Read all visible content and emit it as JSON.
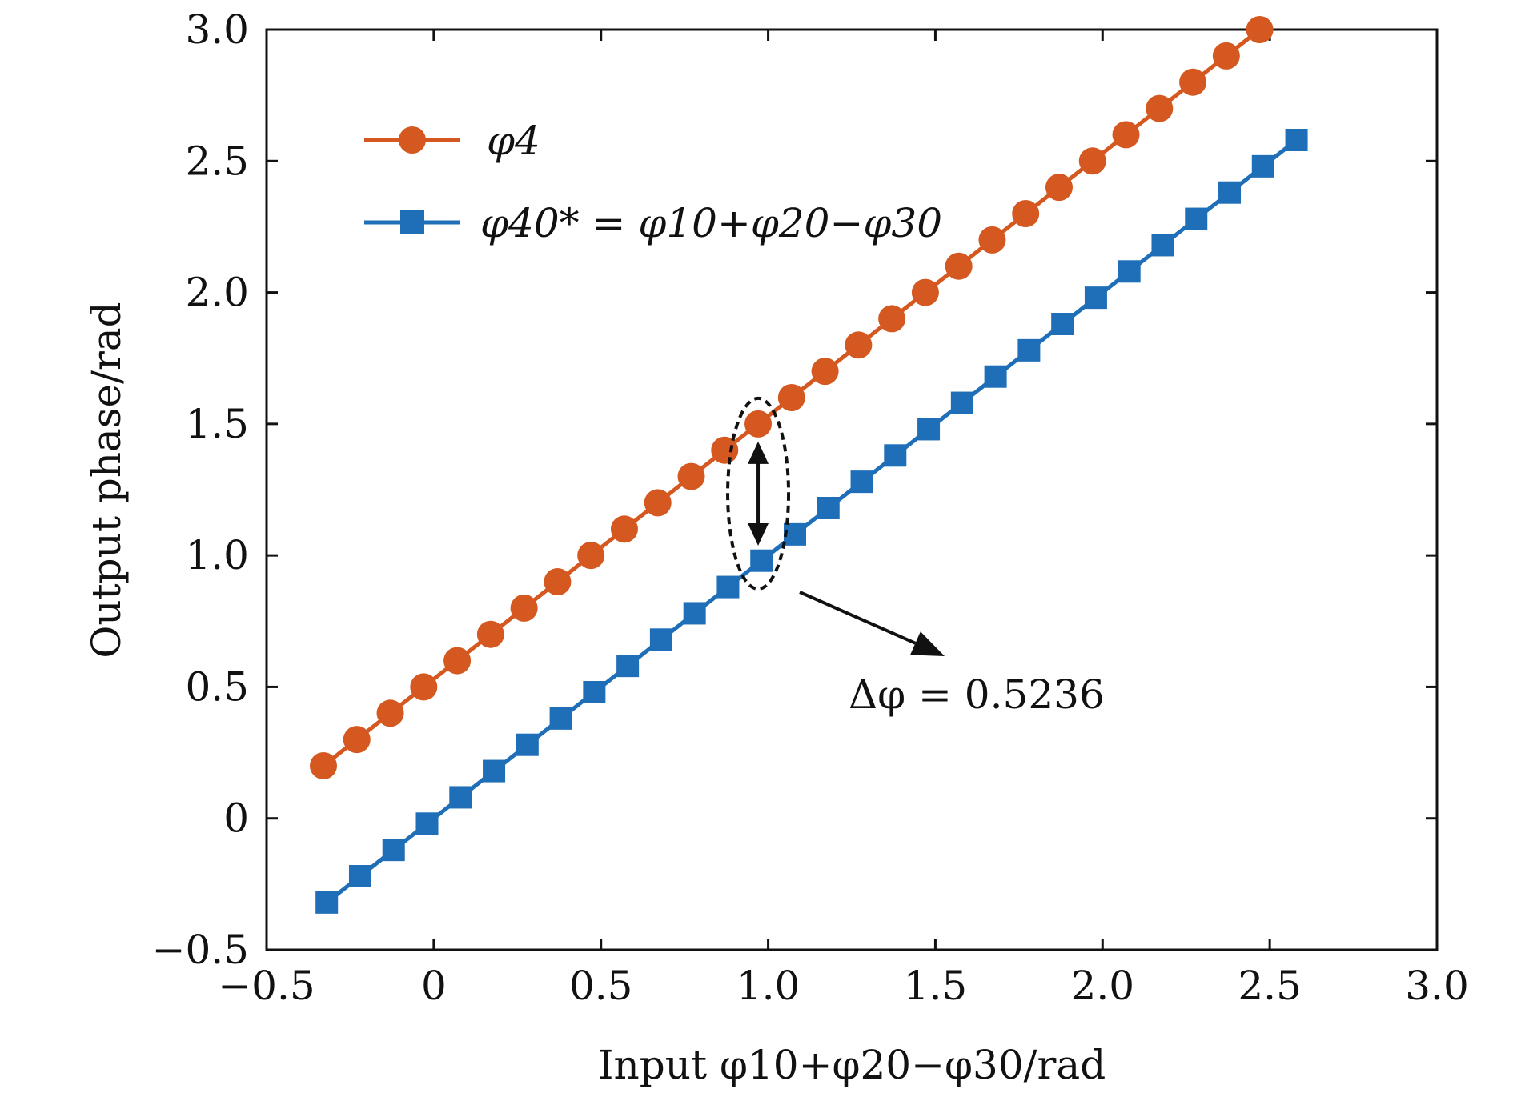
{
  "colors": {
    "series_orange": "#D4581F",
    "series_blue": "#1F6FB8",
    "axis": "#111111"
  },
  "chart_data": {
    "type": "line",
    "xlabel": "Input φ10+φ20−φ30/rad",
    "ylabel": "Output phase/rad",
    "xlim": [
      -0.5,
      3.0
    ],
    "ylim": [
      -0.5,
      3.0
    ],
    "x_ticks": [
      -0.5,
      0,
      0.5,
      1.0,
      1.5,
      2.0,
      2.5,
      3.0
    ],
    "x_tick_labels": [
      "−0.5",
      "0",
      "0.5",
      "1.0",
      "1.5",
      "2.0",
      "2.5",
      "3.0"
    ],
    "y_ticks": [
      -0.5,
      0,
      0.5,
      1.0,
      1.5,
      2.0,
      2.5,
      3.0
    ],
    "y_tick_labels": [
      "−0.5",
      "0",
      "0.5",
      "1.0",
      "1.5",
      "2.0",
      "2.5",
      "3.0"
    ],
    "legend_position": "top-left",
    "grid": false,
    "series": [
      {
        "name": "φ4",
        "marker": "circle",
        "color": "#D4581F",
        "x": [
          -0.33,
          -0.23,
          -0.13,
          -0.03,
          0.07,
          0.17,
          0.27,
          0.37,
          0.47,
          0.57,
          0.67,
          0.77,
          0.87,
          0.97,
          1.07,
          1.17,
          1.27,
          1.37,
          1.47,
          1.57,
          1.67,
          1.77,
          1.87,
          1.97,
          2.07,
          2.17,
          2.27,
          2.37,
          2.47
        ],
        "values": [
          0.2,
          0.3,
          0.4,
          0.5,
          0.6,
          0.7,
          0.8,
          0.9,
          1.0,
          1.1,
          1.2,
          1.3,
          1.4,
          1.5,
          1.6,
          1.7,
          1.8,
          1.9,
          2.0,
          2.1,
          2.2,
          2.3,
          2.4,
          2.5,
          2.6,
          2.7,
          2.8,
          2.9,
          3.0
        ]
      },
      {
        "name": "φ40* = φ10+φ20−φ30",
        "marker": "square",
        "color": "#1F6FB8",
        "x": [
          -0.32,
          -0.22,
          -0.12,
          -0.02,
          0.08,
          0.18,
          0.28,
          0.38,
          0.48,
          0.58,
          0.68,
          0.78,
          0.88,
          0.98,
          1.08,
          1.18,
          1.28,
          1.38,
          1.48,
          1.58,
          1.68,
          1.78,
          1.88,
          1.98,
          2.08,
          2.18,
          2.28,
          2.38,
          2.48,
          2.58
        ],
        "values": [
          -0.32,
          -0.22,
          -0.12,
          -0.02,
          0.08,
          0.18,
          0.28,
          0.38,
          0.48,
          0.58,
          0.68,
          0.78,
          0.88,
          0.98,
          1.08,
          1.18,
          1.28,
          1.38,
          1.48,
          1.58,
          1.68,
          1.78,
          1.88,
          1.98,
          2.08,
          2.18,
          2.28,
          2.38,
          2.48,
          2.58
        ]
      }
    ],
    "annotation": {
      "text": "Δφ = 0.5236",
      "x_data": 0.97,
      "y_top": 1.5,
      "y_bottom": 0.97
    }
  }
}
